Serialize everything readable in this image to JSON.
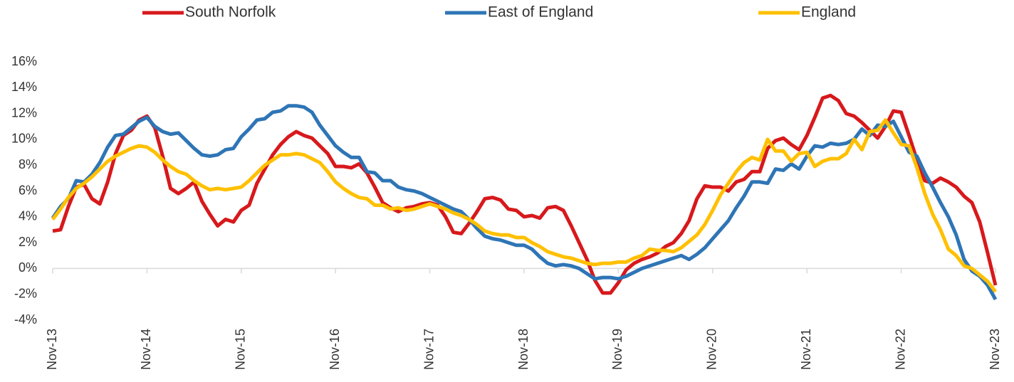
{
  "chart_data": {
    "type": "line",
    "categories": [
      "Nov-13",
      null,
      null,
      null,
      null,
      null,
      null,
      null,
      null,
      null,
      null,
      null,
      "Nov-14",
      null,
      null,
      null,
      null,
      null,
      null,
      null,
      null,
      null,
      null,
      null,
      "Nov-15",
      null,
      null,
      null,
      null,
      null,
      null,
      null,
      null,
      null,
      null,
      null,
      "Nov-16",
      null,
      null,
      null,
      null,
      null,
      null,
      null,
      null,
      null,
      null,
      null,
      "Nov-17",
      null,
      null,
      null,
      null,
      null,
      null,
      null,
      null,
      null,
      null,
      null,
      "Nov-18",
      null,
      null,
      null,
      null,
      null,
      null,
      null,
      null,
      null,
      null,
      null,
      "Nov-19",
      null,
      null,
      null,
      null,
      null,
      null,
      null,
      null,
      null,
      null,
      null,
      "Nov-20",
      null,
      null,
      null,
      null,
      null,
      null,
      null,
      null,
      null,
      null,
      null,
      "Nov-21",
      null,
      null,
      null,
      null,
      null,
      null,
      null,
      null,
      null,
      null,
      null,
      "Nov-22",
      null,
      null,
      null,
      null,
      null,
      null,
      null,
      null,
      null,
      null,
      null,
      "Nov-23"
    ],
    "series": [
      {
        "name": "South Norfolk",
        "color": "#d7191c",
        "values": [
          2.9,
          3.0,
          4.8,
          6.3,
          6.5,
          5.4,
          5.0,
          6.7,
          8.9,
          10.3,
          10.7,
          11.5,
          11.8,
          10.9,
          8.7,
          6.2,
          5.8,
          6.2,
          6.7,
          5.2,
          4.2,
          3.3,
          3.8,
          3.6,
          4.5,
          4.9,
          6.6,
          7.7,
          8.8,
          9.6,
          10.2,
          10.6,
          10.3,
          10.1,
          9.5,
          8.9,
          7.9,
          7.9,
          7.8,
          8.1,
          7.4,
          6.3,
          5.1,
          4.7,
          4.4,
          4.7,
          4.8,
          5.0,
          5.1,
          4.9,
          4.0,
          2.8,
          2.7,
          3.5,
          4.4,
          5.4,
          5.5,
          5.3,
          4.6,
          4.5,
          4.0,
          4.1,
          3.9,
          4.7,
          4.8,
          4.5,
          3.3,
          2.0,
          0.7,
          -0.9,
          -1.9,
          -1.9,
          -1.1,
          -0.1,
          0.4,
          0.7,
          0.9,
          1.2,
          1.7,
          2.0,
          2.7,
          3.7,
          5.4,
          6.4,
          6.3,
          6.3,
          6.0,
          6.7,
          6.9,
          7.5,
          7.5,
          9.3,
          9.9,
          10.1,
          9.6,
          9.2,
          10.3,
          11.7,
          13.2,
          13.4,
          13.0,
          12.0,
          11.8,
          11.3,
          10.7,
          10.1,
          11.0,
          12.2,
          12.1,
          10.3,
          8.4,
          6.8,
          6.6,
          7.0,
          6.7,
          6.3,
          5.6,
          5.1,
          3.6,
          1.2,
          -1.3
        ]
      },
      {
        "name": "East of England",
        "color": "#2e75b6",
        "values": [
          3.9,
          4.8,
          5.4,
          6.8,
          6.7,
          7.3,
          8.2,
          9.4,
          10.3,
          10.4,
          10.9,
          11.4,
          11.7,
          11.0,
          10.6,
          10.4,
          10.5,
          9.9,
          9.3,
          8.8,
          8.7,
          8.8,
          9.2,
          9.3,
          10.2,
          10.8,
          11.5,
          11.6,
          12.1,
          12.2,
          12.6,
          12.6,
          12.5,
          12.1,
          11.1,
          10.3,
          9.5,
          9.0,
          8.6,
          8.6,
          7.5,
          7.4,
          6.8,
          6.8,
          6.3,
          6.1,
          6.0,
          5.8,
          5.5,
          5.2,
          4.9,
          4.6,
          4.4,
          3.8,
          3.1,
          2.5,
          2.3,
          2.2,
          2.0,
          1.8,
          1.8,
          1.5,
          0.9,
          0.4,
          0.2,
          0.3,
          0.2,
          0.0,
          -0.4,
          -0.8,
          -0.7,
          -0.7,
          -0.8,
          -0.6,
          -0.3,
          0.0,
          0.2,
          0.4,
          0.6,
          0.8,
          1.0,
          0.7,
          1.1,
          1.6,
          2.3,
          3.0,
          3.7,
          4.7,
          5.6,
          6.7,
          6.7,
          6.6,
          7.7,
          7.6,
          8.1,
          7.7,
          8.7,
          9.5,
          9.4,
          9.7,
          9.6,
          9.7,
          10.0,
          10.8,
          10.3,
          11.1,
          11.0,
          11.4,
          10.2,
          9.0,
          8.7,
          7.4,
          6.3,
          5.1,
          4.0,
          2.6,
          0.7,
          -0.2,
          -0.6,
          -1.3,
          -2.4
        ]
      },
      {
        "name": "England",
        "color": "#ffc000",
        "values": [
          3.8,
          4.6,
          5.5,
          6.2,
          6.6,
          7.1,
          7.7,
          8.3,
          8.7,
          9.0,
          9.3,
          9.5,
          9.4,
          9.0,
          8.4,
          7.9,
          7.5,
          7.3,
          6.8,
          6.4,
          6.1,
          6.2,
          6.1,
          6.2,
          6.3,
          6.8,
          7.4,
          8.0,
          8.4,
          8.8,
          8.8,
          8.9,
          8.8,
          8.5,
          8.2,
          7.5,
          6.7,
          6.2,
          5.8,
          5.5,
          5.4,
          4.9,
          4.9,
          4.6,
          4.7,
          4.5,
          4.6,
          4.8,
          5.0,
          4.8,
          4.6,
          4.3,
          4.1,
          3.8,
          3.4,
          2.9,
          2.7,
          2.6,
          2.6,
          2.4,
          2.4,
          2.0,
          1.7,
          1.3,
          1.1,
          0.9,
          0.8,
          0.6,
          0.4,
          0.3,
          0.4,
          0.4,
          0.5,
          0.5,
          0.8,
          1.0,
          1.5,
          1.4,
          1.4,
          1.3,
          1.6,
          2.1,
          2.6,
          3.4,
          4.5,
          5.7,
          6.6,
          7.5,
          8.2,
          8.6,
          8.4,
          10.0,
          9.1,
          9.1,
          8.3,
          8.9,
          9.0,
          7.9,
          8.3,
          8.5,
          8.5,
          8.9,
          10.0,
          9.2,
          10.6,
          10.7,
          11.5,
          10.5,
          9.6,
          9.5,
          7.8,
          5.8,
          4.2,
          3.0,
          1.5,
          1.0,
          0.2,
          0.0,
          -0.5,
          -1.0,
          -1.8
        ]
      }
    ],
    "ylim": [
      -4,
      16
    ],
    "yticks": [
      {
        "value": -4,
        "label": "-4%"
      },
      {
        "value": -2,
        "label": "-2%"
      },
      {
        "value": 0,
        "label": "0%"
      },
      {
        "value": 2,
        "label": "2%"
      },
      {
        "value": 4,
        "label": "4%"
      },
      {
        "value": 6,
        "label": "6%"
      },
      {
        "value": 8,
        "label": "8%"
      },
      {
        "value": 10,
        "label": "10%"
      },
      {
        "value": 12,
        "label": "12%"
      },
      {
        "value": 14,
        "label": "14%"
      },
      {
        "value": 16,
        "label": "16%"
      }
    ],
    "grid": false,
    "legend": "top"
  }
}
